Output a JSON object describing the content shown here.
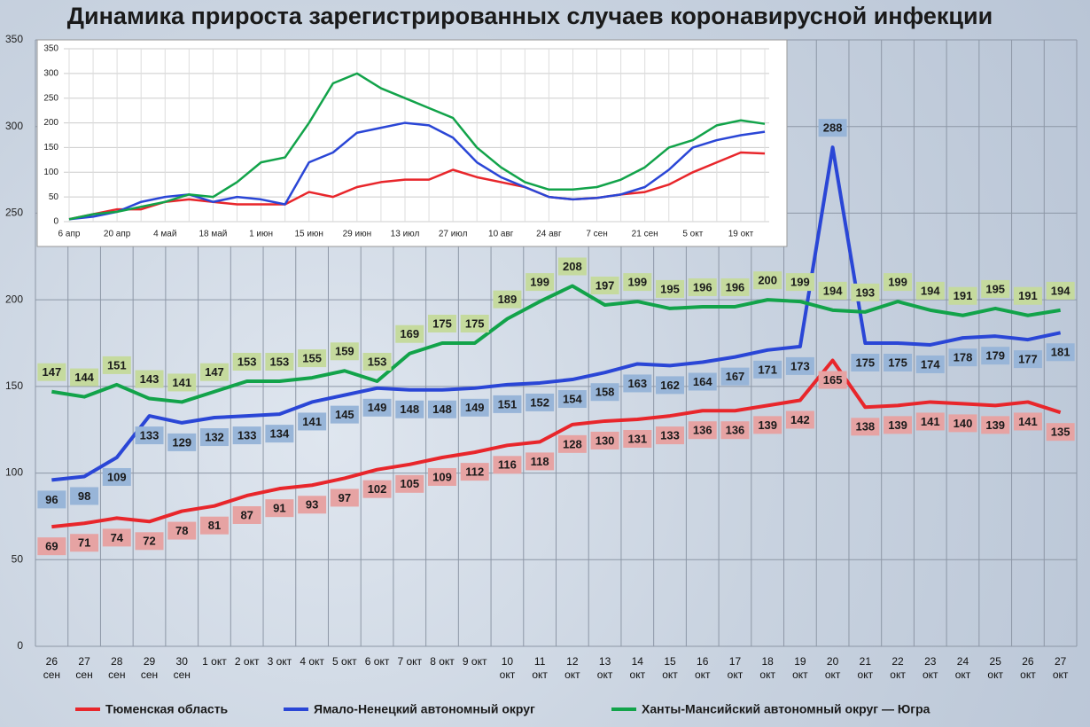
{
  "chart_data": [
    {
      "type": "line",
      "title": "Динамика прироста зарегистрированных случаев коронавирусной инфекции",
      "categories": [
        "26\nсен",
        "27\nсен",
        "28\nсен",
        "29\nсен",
        "30\nсен",
        "1 окт",
        "2 окт",
        "3 окт",
        "4 окт",
        "5 окт",
        "6 окт",
        "7 окт",
        "8 окт",
        "9 окт",
        "10\nокт",
        "11\nокт",
        "12\nокт",
        "13\nокт",
        "14\nокт",
        "15\nокт",
        "16\nокт",
        "17\nокт",
        "18\nокт",
        "19\nокт",
        "20\nокт",
        "21\nокт",
        "22\nокт",
        "23\nокт",
        "24\nокт",
        "25\nокт",
        "26\nокт",
        "27\nокт"
      ],
      "series": [
        {
          "name": "Тюменская область",
          "color": "#e8262b",
          "label_color": "#e6a3a3",
          "values": [
            69,
            71,
            74,
            72,
            78,
            81,
            87,
            91,
            93,
            97,
            102,
            105,
            109,
            112,
            116,
            118,
            128,
            130,
            131,
            133,
            136,
            136,
            139,
            142,
            165,
            138,
            139,
            141,
            140,
            139,
            141,
            135
          ]
        },
        {
          "name": "Ямало-Ненецкий автономный округ",
          "color": "#2a46d6",
          "label_color": "#98b5d8",
          "values": [
            96,
            98,
            109,
            133,
            129,
            132,
            133,
            134,
            141,
            145,
            149,
            148,
            148,
            149,
            151,
            152,
            154,
            158,
            163,
            162,
            164,
            167,
            171,
            173,
            288,
            175,
            175,
            174,
            178,
            179,
            177,
            181
          ]
        },
        {
          "name": "Ханты-Мансийский автономный округ — Югра",
          "color": "#12a34a",
          "label_color": "#c5da9e",
          "values": [
            147,
            144,
            151,
            143,
            141,
            147,
            153,
            153,
            155,
            159,
            153,
            169,
            175,
            175,
            189,
            199,
            208,
            197,
            199,
            195,
            196,
            196,
            200,
            199,
            194,
            193,
            199,
            194,
            191,
            195,
            191,
            194
          ]
        }
      ],
      "ylim": [
        0,
        350
      ],
      "yticks": [
        0,
        50,
        100,
        150,
        200,
        250,
        300,
        350
      ],
      "grid": true
    },
    {
      "type": "line",
      "categories": [
        "6 апр",
        null,
        "20 апр",
        null,
        "4 май",
        null,
        "18 май",
        null,
        "1 июн",
        null,
        "15 июн",
        null,
        "29 июн",
        null,
        "13 июл",
        null,
        "27 июл",
        null,
        "10 авг",
        null,
        "24 авг",
        null,
        "7 сен",
        null,
        "21 сен",
        null,
        "5 окт",
        null,
        "19 окт",
        null
      ],
      "series": [
        {
          "color": "#e8262b",
          "values": [
            5,
            15,
            25,
            25,
            40,
            45,
            40,
            35,
            35,
            35,
            60,
            50,
            70,
            80,
            85,
            85,
            105,
            90,
            80,
            70,
            50,
            45,
            48,
            55,
            60,
            75,
            100,
            120,
            140,
            138
          ]
        },
        {
          "color": "#2a46d6",
          "values": [
            5,
            10,
            20,
            40,
            50,
            55,
            40,
            50,
            45,
            35,
            120,
            140,
            180,
            190,
            200,
            195,
            170,
            120,
            90,
            70,
            50,
            45,
            48,
            55,
            70,
            105,
            150,
            165,
            175,
            182
          ]
        },
        {
          "color": "#12a34a",
          "values": [
            5,
            15,
            20,
            30,
            40,
            55,
            50,
            80,
            120,
            130,
            200,
            280,
            300,
            270,
            250,
            230,
            210,
            150,
            110,
            80,
            65,
            65,
            70,
            85,
            110,
            150,
            165,
            195,
            205,
            198
          ]
        }
      ],
      "ylim": [
        0,
        350
      ],
      "yticks": [
        0,
        50,
        100,
        150,
        200,
        250,
        300,
        350
      ],
      "grid": true
    }
  ]
}
